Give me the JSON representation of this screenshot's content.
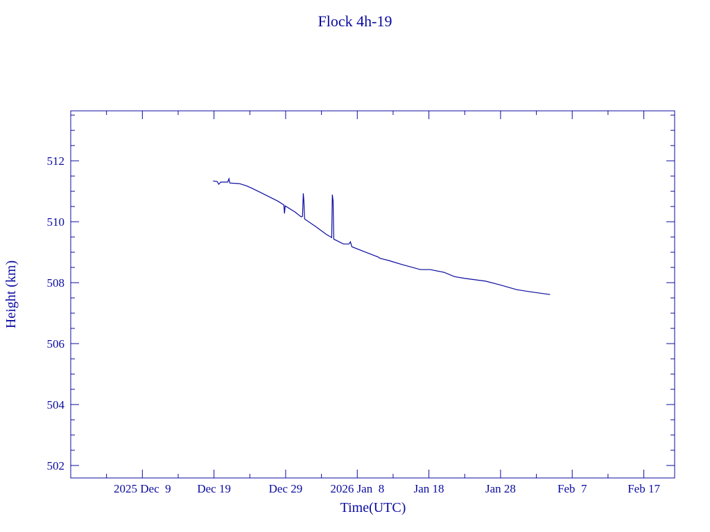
{
  "chart_data": {
    "type": "line",
    "title": "Flock 4h-19",
    "xlabel": "Time(UTC)",
    "ylabel": "Height (km)",
    "x_units": "days since 2025 Dec 9",
    "xlim": [
      -10,
      74.3
    ],
    "ylim": [
      501.59,
      513.64
    ],
    "color": "#0a0aa0",
    "x_ticks": [
      {
        "value": 0,
        "label": "2025 Dec  9"
      },
      {
        "value": 10,
        "label": "Dec 19"
      },
      {
        "value": 20,
        "label": "Dec 29"
      },
      {
        "value": 30,
        "label": "2026 Jan  8"
      },
      {
        "value": 40,
        "label": "Jan 18"
      },
      {
        "value": 50,
        "label": "Jan 28"
      },
      {
        "value": 60,
        "label": "Feb  7"
      },
      {
        "value": 70,
        "label": "Feb 17"
      }
    ],
    "x_minor_step": 5,
    "y_ticks": [
      {
        "value": 502,
        "label": "502"
      },
      {
        "value": 504,
        "label": "504"
      },
      {
        "value": 506,
        "label": "506"
      },
      {
        "value": 508,
        "label": "508"
      },
      {
        "value": 510,
        "label": "510"
      },
      {
        "value": 512,
        "label": "512"
      }
    ],
    "y_minor_step": 0.5,
    "series": [
      {
        "name": "Height",
        "x": [
          9.87,
          10.45,
          10.65,
          10.94,
          11.91,
          12.1,
          12.2,
          13.55,
          14.52,
          15.2,
          16.94,
          18.88,
          19.75,
          19.84,
          19.94,
          21.3,
          22.17,
          22.36,
          22.46,
          22.55,
          22.65,
          24.2,
          25.65,
          26.43,
          26.52,
          26.62,
          26.72,
          28.07,
          28.85,
          29.04,
          29.24,
          31.17,
          32.91,
          33.2,
          34.37,
          36.3,
          38.82,
          40.17,
          42.1,
          43.56,
          45.0,
          47.92,
          49.85,
          52.27,
          54.21,
          56.92
        ],
        "y": [
          511.34,
          511.32,
          511.23,
          511.3,
          511.3,
          511.41,
          511.27,
          511.25,
          511.18,
          511.11,
          510.91,
          510.68,
          510.55,
          510.27,
          510.52,
          510.32,
          510.16,
          510.18,
          510.93,
          510.68,
          510.09,
          509.84,
          509.59,
          509.48,
          510.89,
          510.68,
          509.43,
          509.27,
          509.27,
          509.34,
          509.18,
          509.0,
          508.84,
          508.8,
          508.73,
          508.59,
          508.43,
          508.43,
          508.34,
          508.2,
          508.14,
          508.05,
          507.93,
          507.77,
          507.7,
          507.61
        ]
      }
    ]
  }
}
